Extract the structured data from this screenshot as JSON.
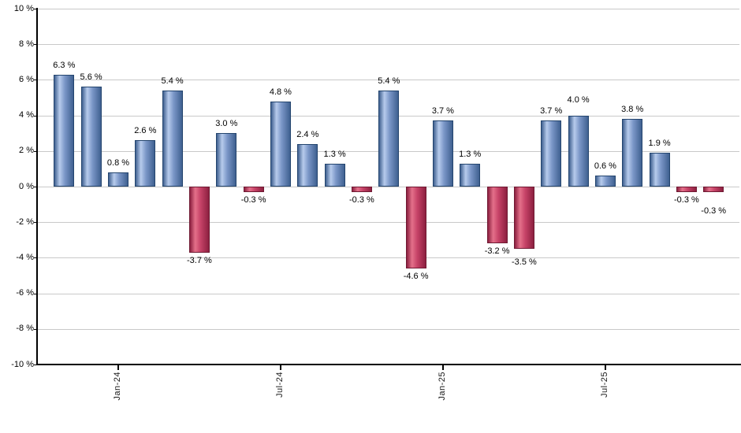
{
  "chart_data": {
    "type": "bar",
    "title": "",
    "xlabel": "",
    "ylabel": "",
    "ylim": [
      -10,
      10
    ],
    "ytick_step": 2,
    "grid": true,
    "legend": "none",
    "values": [
      6.3,
      5.6,
      0.8,
      2.6,
      5.4,
      -3.7,
      3.0,
      -0.3,
      4.8,
      2.4,
      1.3,
      -0.3,
      5.4,
      -4.6,
      3.7,
      1.3,
      -3.2,
      -3.5,
      3.7,
      4.0,
      0.6,
      3.8,
      1.9,
      -0.3,
      -0.3
    ],
    "value_labels": [
      "6.3 %",
      "5.6 %",
      "0.8 %",
      "2.6 %",
      "5.4 %",
      "-3.7 %",
      "3.0 %",
      "-0.3 %",
      "4.8 %",
      "2.4 %",
      "1.3 %",
      "-0.3 %",
      "5.4 %",
      "-4.6 %",
      "3.7 %",
      "1.3 %",
      "-3.2 %",
      "-3.5 %",
      "3.7 %",
      "4.0 %",
      "0.6 %",
      "3.8 %",
      "1.9 %",
      "-0.3 %",
      "-0.3 %"
    ],
    "ytick_labels": [
      "10 %",
      "8 %",
      "6 %",
      "4 %",
      "2 %",
      "0 %",
      "-2 %",
      "-4 %",
      "-6 %",
      "-8 %",
      "-10 %"
    ],
    "xticks": [
      {
        "label": "Jan-24",
        "bar_index": 2
      },
      {
        "label": "Jul-24",
        "bar_index": 8
      },
      {
        "label": "Jan-25",
        "bar_index": 14
      },
      {
        "label": "Jul-25",
        "bar_index": 20
      }
    ],
    "colors": {
      "positive_edge": "#24456e",
      "positive_dark": "#3f6090",
      "positive_mid": "#7b97c8",
      "positive_light": "#b7cbec",
      "negative_edge": "#701a33",
      "negative_dark": "#8c2040",
      "negative_mid": "#c74368",
      "negative_light": "#e4708a",
      "gridline": "#c9c9c9",
      "axis": "#000000",
      "label_text": "#000000",
      "background": "#ffffff"
    }
  }
}
